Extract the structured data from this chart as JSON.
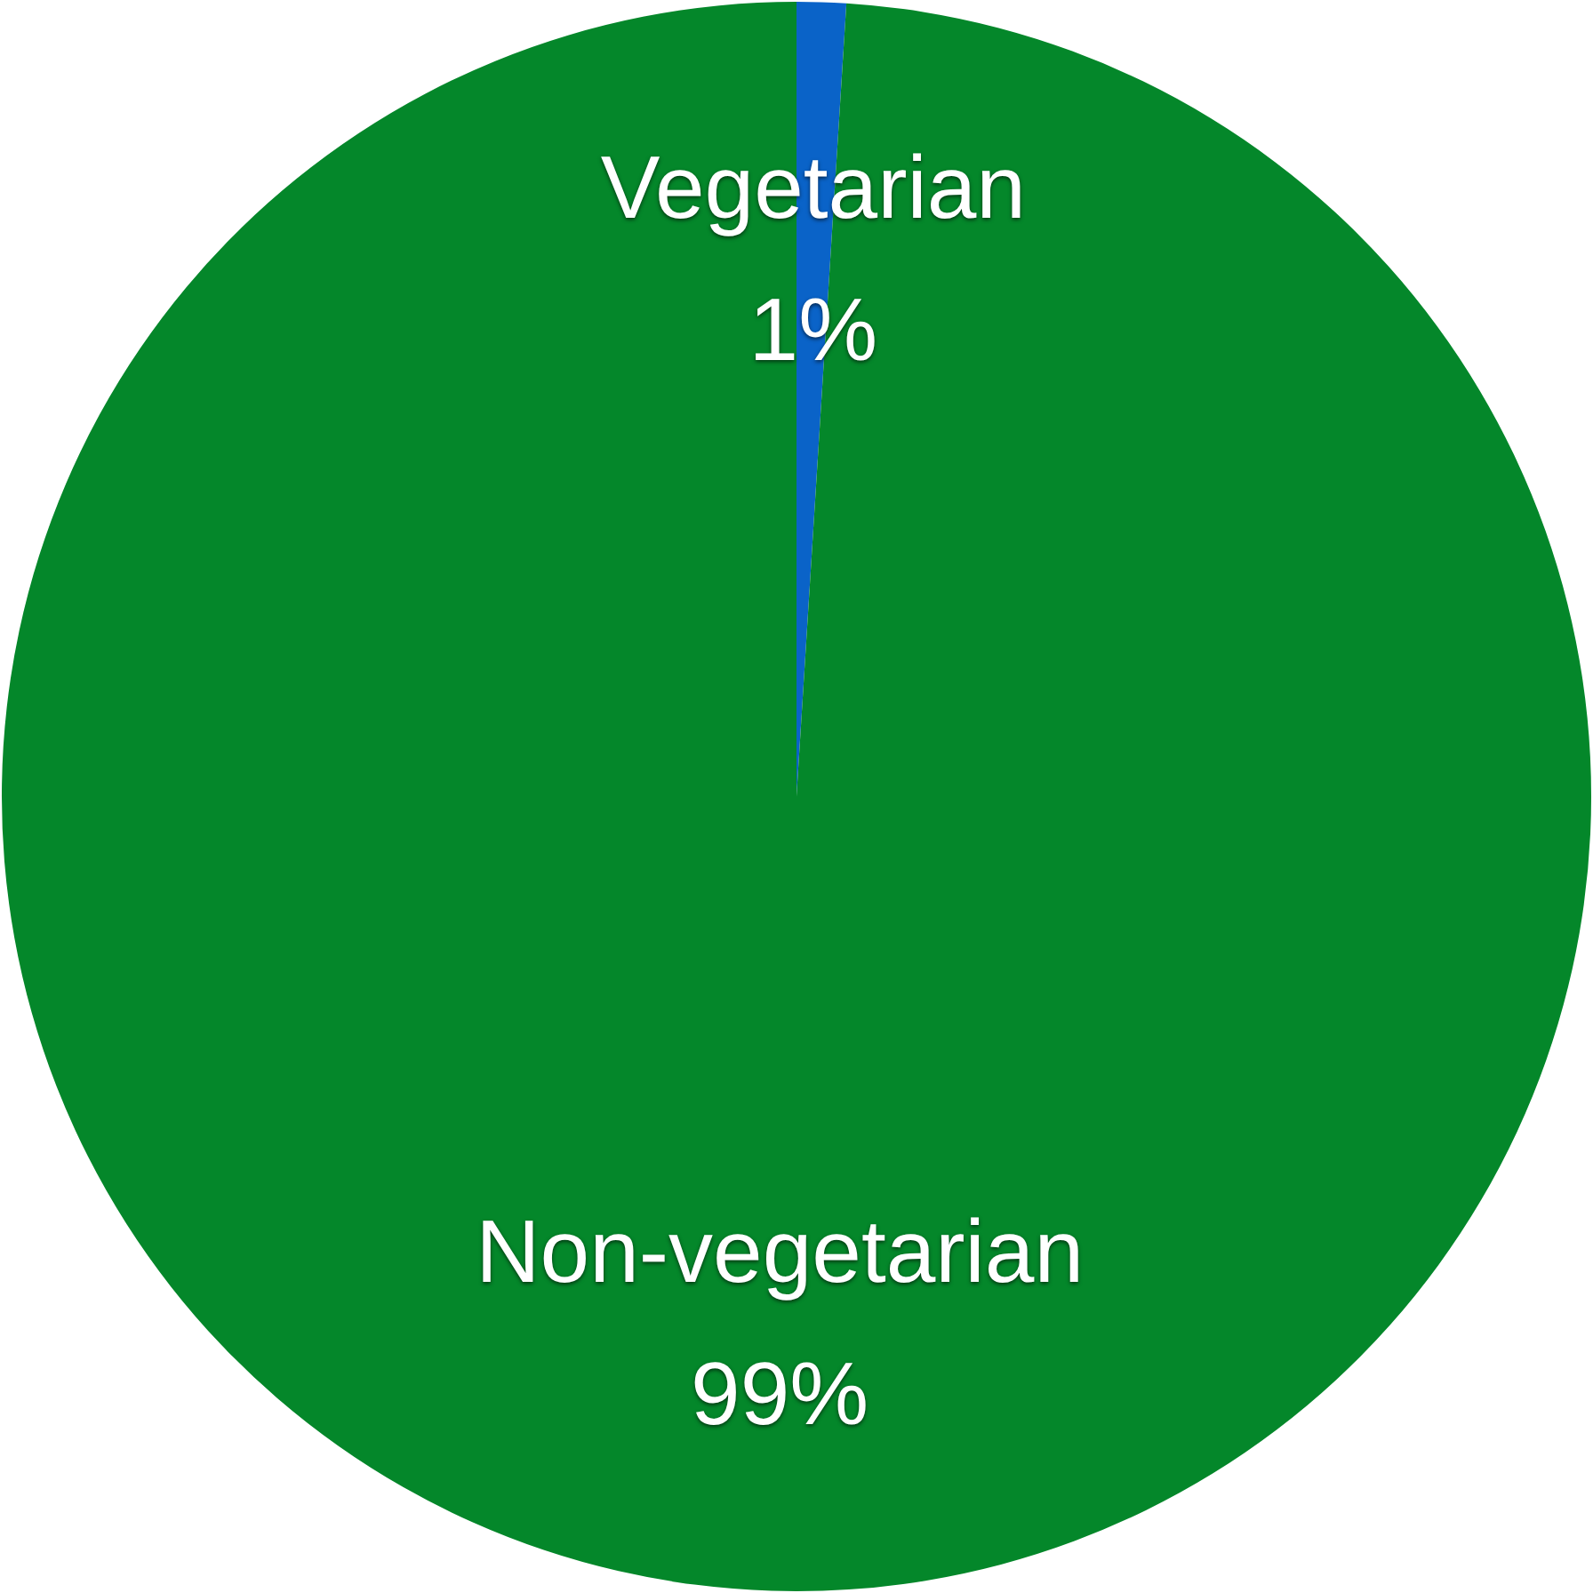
{
  "chart_data": {
    "type": "pie",
    "categories": [
      "Vegetarian",
      "Non-vegetarian"
    ],
    "values": [
      1,
      99
    ],
    "colors": [
      "#0a63c8",
      "#04872a"
    ],
    "value_labels": [
      "1%",
      "99%"
    ],
    "legend": false
  }
}
